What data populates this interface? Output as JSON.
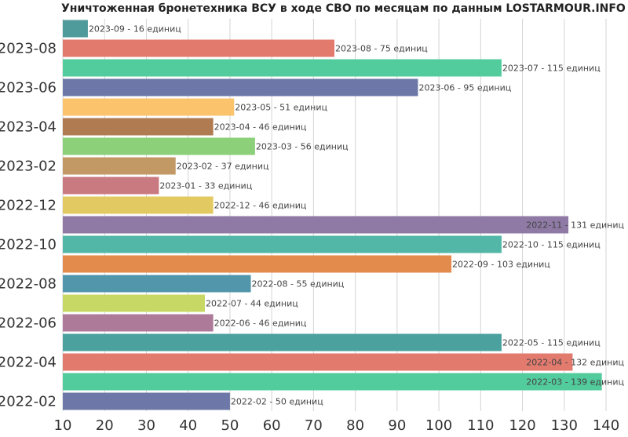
{
  "chart_data": {
    "type": "bar",
    "orientation": "horizontal",
    "title": "Уничтоженная бронетехника ВСУ в ходе СВО по месяцам по данным LOSTARMOUR.INFO",
    "xlabel": "",
    "ylabel": "",
    "xlim": [
      10,
      140
    ],
    "x_ticks": [
      "10",
      "20",
      "30",
      "40",
      "50",
      "60",
      "70",
      "80",
      "90",
      "100",
      "110",
      "120",
      "130",
      "140"
    ],
    "y_tick_labels": [
      "2023-08",
      "2023-06",
      "2023-04",
      "2023-02",
      "2022-12",
      "2022-10",
      "2022-08",
      "2022-06",
      "2022-04",
      "2022-02"
    ],
    "grid": true,
    "legend": "none",
    "unit": "единиц",
    "categories": [
      "2023-09",
      "2023-08",
      "2023-07",
      "2023-06",
      "2023-05",
      "2023-04",
      "2023-03",
      "2023-02",
      "2023-01",
      "2022-12",
      "2022-11",
      "2022-10",
      "2022-09",
      "2022-08",
      "2022-07",
      "2022-06",
      "2022-05",
      "2022-04",
      "2022-03",
      "2022-02"
    ],
    "values": [
      16,
      75,
      115,
      95,
      51,
      46,
      56,
      37,
      33,
      46,
      131,
      115,
      103,
      55,
      44,
      46,
      115,
      132,
      139,
      50
    ],
    "colors": [
      "#4f9a9a",
      "#e27a6e",
      "#52cc9c",
      "#6d78a8",
      "#fbc46c",
      "#b07b50",
      "#8dd07a",
      "#c29865",
      "#c97a80",
      "#e2c962",
      "#8e7aa5",
      "#52b7a6",
      "#e38b4d",
      "#5296ac",
      "#c8d865",
      "#ad7a9a",
      "#4aa19e",
      "#e27a6e",
      "#52cc9c",
      "#6d78a8"
    ],
    "data_labels": [
      "2023-09 - 16 единиц",
      "2023-08 - 75 единиц",
      "2023-07 - 115 единиц",
      "2023-06 - 95 единиц",
      "2023-05 - 51 единиц",
      "2023-04 - 46 единиц",
      "2023-03 - 56 единиц",
      "2023-02 - 37 единиц",
      "2023-01 - 33 единиц",
      "2022-12 - 46 единиц",
      "2022-11 - 131 единиц",
      "2022-10 - 115 единиц",
      "2022-09 - 103 единиц",
      "2022-08 - 55 единиц",
      "2022-07 - 44 единиц",
      "2022-06 - 46 единиц",
      "2022-05 - 115 единиц",
      "2022-04 - 132 единиц",
      "2022-03 - 139 единиц",
      "2022-02 - 50 единиц"
    ]
  }
}
